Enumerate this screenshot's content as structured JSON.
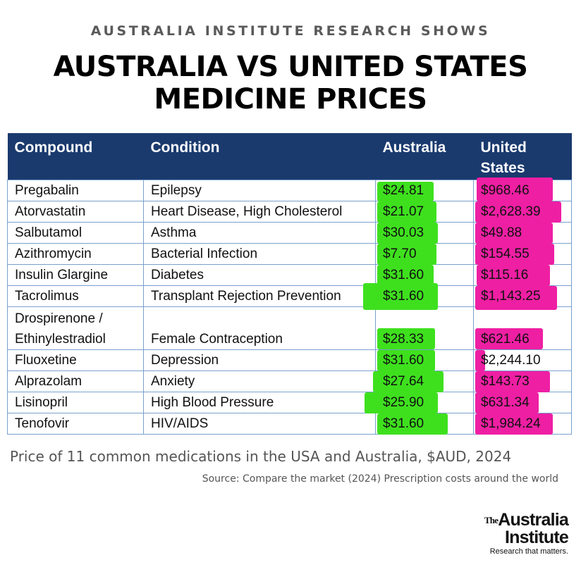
{
  "header": {
    "kicker": "AUSTRALIA INSTITUTE RESEARCH SHOWS",
    "title_line1": "AUSTRALIA VS UNITED STATES",
    "title_line2": "MEDICINE PRICES"
  },
  "table": {
    "columns": [
      "Compound",
      "Condition",
      "Australia",
      "United States"
    ],
    "header_color": "#1a3a6e",
    "highlight_colors": {
      "australia": "#3ee01e",
      "united_states": "#ee1fa3"
    },
    "rows": [
      {
        "compound": "Pregabalin",
        "condition": "Epilepsy",
        "australia": "$24.81",
        "us": "$968.46"
      },
      {
        "compound": "Atorvastatin",
        "condition": "Heart Disease, High Cholesterol",
        "australia": "$21.07",
        "us": "$2,628.39"
      },
      {
        "compound": "Salbutamol",
        "condition": "Asthma",
        "australia": "$30.03",
        "us": "$49.88"
      },
      {
        "compound": "Azithromycin",
        "condition": "Bacterial Infection",
        "australia": "$7.70",
        "us": "$154.55"
      },
      {
        "compound": "Insulin Glargine",
        "condition": "Diabetes",
        "australia": "$31.60",
        "us": "$115.16"
      },
      {
        "compound": "Tacrolimus",
        "condition": "Transplant Rejection Prevention",
        "australia": "$31.60",
        "us": "$1,143.25"
      },
      {
        "compound_line1": "Drospirenone /",
        "compound_line2": "Ethinylestradiol",
        "condition": "Female Contraception",
        "australia": "$28.33",
        "us": "$621.46"
      },
      {
        "compound": "Fluoxetine",
        "condition": "Depression",
        "australia": "$31.60",
        "us": "$2,244.10"
      },
      {
        "compound": "Alprazolam",
        "condition": "Anxiety",
        "australia": "$27.64",
        "us": "$143.73"
      },
      {
        "compound": "Lisinopril",
        "condition": "High Blood Pressure",
        "australia": "$25.90",
        "us": "$631.34"
      },
      {
        "compound": "Tenofovir",
        "condition": "HIV/AIDS",
        "australia": "$31.60",
        "us": "$1,984.24"
      }
    ]
  },
  "footer": {
    "caption": "Price of 11 common medications in the USA and Australia, $AUD, 2024",
    "source": "Source: Compare the market (2024) Prescription costs around the world"
  },
  "logo": {
    "the": "The",
    "name_line1": "Australia",
    "name_line2": "Institute",
    "tagline": "Research that matters."
  }
}
